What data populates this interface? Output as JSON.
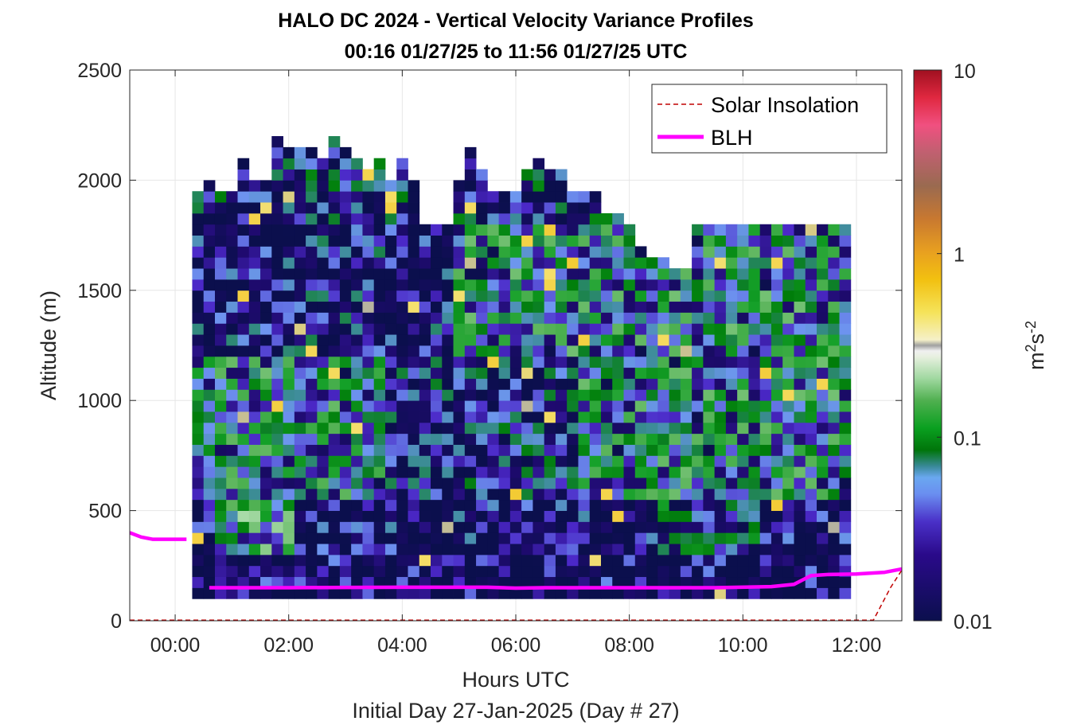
{
  "chart_data": {
    "type": "heatmap",
    "title": "HALO DC 2024 - Vertical Velocity Variance Profiles",
    "subtitle": "00:16 01/27/25 to 11:56 01/27/25  UTC",
    "xlabel": "Hours UTC",
    "xlabel2": "Initial Day 27-Jan-2025 (Day # 27)",
    "ylabel": "Altitude (m)",
    "xlim": [
      -0.8,
      12.8
    ],
    "ylim": [
      0,
      2500
    ],
    "x_ticks": [
      0,
      2,
      4,
      6,
      8,
      10,
      12
    ],
    "x_tick_labels": [
      "00:00",
      "02:00",
      "04:00",
      "06:00",
      "08:00",
      "10:00",
      "12:00"
    ],
    "y_ticks": [
      0,
      500,
      1000,
      1500,
      2000,
      2500
    ],
    "y_tick_labels": [
      "0",
      "500",
      "1000",
      "1500",
      "2000",
      "2500"
    ],
    "grid": true,
    "colorbar": {
      "label_base": "m",
      "label_sup1": "2",
      "label_mid": "s",
      "label_sup2": "-2",
      "scale": "log",
      "range": [
        0.01,
        10
      ],
      "ticks": [
        0.01,
        0.1,
        1,
        10
      ],
      "tick_labels": [
        "0.01",
        "0.1",
        "1",
        "10"
      ]
    },
    "legend": {
      "placement": "top-right",
      "entries": [
        {
          "name": "Solar Insolation",
          "style": "dashed",
          "color": "#c00000"
        },
        {
          "name": "BLH",
          "style": "solid",
          "color": "#ff00ff"
        }
      ]
    },
    "heatmap": {
      "bin_hours": 0.2,
      "bin_meters": 50,
      "x_start": 0.3,
      "x_end": 11.9,
      "y_min": 100,
      "col_tops": [
        1950,
        2000,
        1950,
        1950,
        2100,
        2000,
        2000,
        2200,
        2150,
        2150,
        2150,
        2100,
        2200,
        2150,
        2100,
        2050,
        2100,
        2000,
        2100,
        2000,
        1800,
        1800,
        1800,
        2000,
        2150,
        2050,
        1950,
        1950,
        1950,
        2050,
        2100,
        2050,
        2050,
        1950,
        1950,
        1950,
        1850,
        1850,
        1800,
        1700,
        1650,
        1650,
        1600,
        1600
      ],
      "value_range_log10": [
        -2,
        1
      ]
    },
    "blh": {
      "x": [
        -0.8,
        -0.6,
        -0.4,
        0.2,
        0.3,
        0.6,
        2,
        4,
        5.5,
        6,
        6.5,
        8,
        9.5,
        10.5,
        10.9,
        11.2,
        11.5,
        12,
        12.5,
        12.8
      ],
      "y": [
        400,
        380,
        370,
        370,
        null,
        150,
        150,
        152,
        152,
        148,
        150,
        150,
        150,
        155,
        165,
        205,
        210,
        212,
        220,
        235
      ]
    },
    "solar_insolation": {
      "x": [
        -0.8,
        12.3,
        12.6,
        12.8
      ],
      "y": [
        3,
        3,
        150,
        230
      ]
    },
    "colors": {
      "blh": "#ff00ff",
      "solar": "#c00000",
      "background_bin": "#0b0f4d",
      "grid": "#e6e6e6"
    }
  }
}
